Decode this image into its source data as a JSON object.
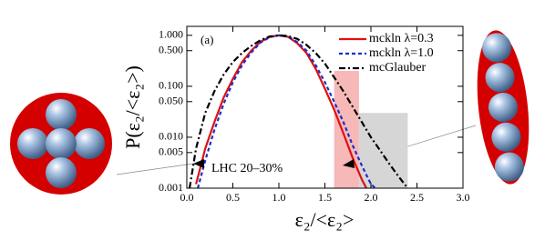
{
  "chart_data": {
    "type": "line",
    "annotation": "(a)",
    "note": "LHC 20–30%",
    "xlabel": "ε₂/<ε₂>",
    "ylabel": "P(ε₂/<ε₂>)",
    "log_y": true,
    "xlim": [
      0,
      3
    ],
    "ylim": [
      0.001,
      1.5
    ],
    "xticks": [
      {
        "value": 0,
        "label": "0.0"
      },
      0.5,
      {
        "value": 1,
        "label": "1.0"
      },
      1.5,
      {
        "value": 2,
        "label": "2.0"
      },
      2.5,
      {
        "value": 3,
        "label": "3.0"
      }
    ],
    "yticks": [
      0.001,
      0.005,
      {
        "value": 0.01,
        "label": "0.010"
      },
      {
        "value": 0.05,
        "label": "0.050"
      },
      {
        "value": 0.1,
        "label": "0.100"
      },
      {
        "value": 0.5,
        "label": "0.500"
      },
      {
        "value": 1,
        "label": "1.000"
      }
    ],
    "legend": "top-right",
    "bands": [
      {
        "x": [
          1.6,
          1.87
        ],
        "ytop": 0.2,
        "color": "#f7b8b8"
      },
      {
        "x": [
          1.87,
          2.4
        ],
        "ytop": 0.03,
        "color": "#d6d6d6"
      }
    ],
    "series": [
      {
        "name": "mckln λ=0.3",
        "color": "#e01010",
        "dash": "",
        "x": [
          0.1,
          0.2,
          0.3,
          0.4,
          0.5,
          0.6,
          0.7,
          0.8,
          0.9,
          1.0,
          1.1,
          1.2,
          1.3,
          1.4,
          1.5,
          1.6,
          1.7,
          1.8,
          1.9,
          1.95
        ],
        "values": [
          0.0012,
          0.006,
          0.02,
          0.06,
          0.14,
          0.3,
          0.5,
          0.75,
          0.93,
          1.0,
          0.93,
          0.7,
          0.45,
          0.22,
          0.09,
          0.035,
          0.012,
          0.004,
          0.0015,
          0.001
        ]
      },
      {
        "name": "mckln λ=1.0",
        "color": "#1a2fd0",
        "dash": "4 3",
        "x": [
          0.12,
          0.2,
          0.3,
          0.4,
          0.5,
          0.6,
          0.7,
          0.8,
          0.9,
          1.0,
          1.1,
          1.2,
          1.3,
          1.4,
          1.5,
          1.6,
          1.7,
          1.8,
          1.9,
          2.0,
          2.05
        ],
        "values": [
          0.001,
          0.0035,
          0.014,
          0.045,
          0.12,
          0.26,
          0.46,
          0.72,
          0.92,
          1.0,
          0.95,
          0.74,
          0.5,
          0.26,
          0.12,
          0.05,
          0.02,
          0.007,
          0.0028,
          0.0012,
          0.001
        ]
      },
      {
        "name": "mcGlauber",
        "color": "#000000",
        "dash": "7 3 2 3",
        "x": [
          0.03,
          0.1,
          0.2,
          0.3,
          0.4,
          0.5,
          0.6,
          0.7,
          0.8,
          0.9,
          1.0,
          1.1,
          1.2,
          1.3,
          1.4,
          1.5,
          1.6,
          1.7,
          1.8,
          1.9,
          2.0,
          2.1,
          2.2,
          2.3,
          2.4
        ],
        "values": [
          0.001,
          0.006,
          0.03,
          0.08,
          0.17,
          0.3,
          0.45,
          0.62,
          0.8,
          0.95,
          1.0,
          0.97,
          0.85,
          0.65,
          0.45,
          0.28,
          0.15,
          0.08,
          0.04,
          0.02,
          0.01,
          0.0055,
          0.003,
          0.0017,
          0.001
        ]
      }
    ]
  }
}
